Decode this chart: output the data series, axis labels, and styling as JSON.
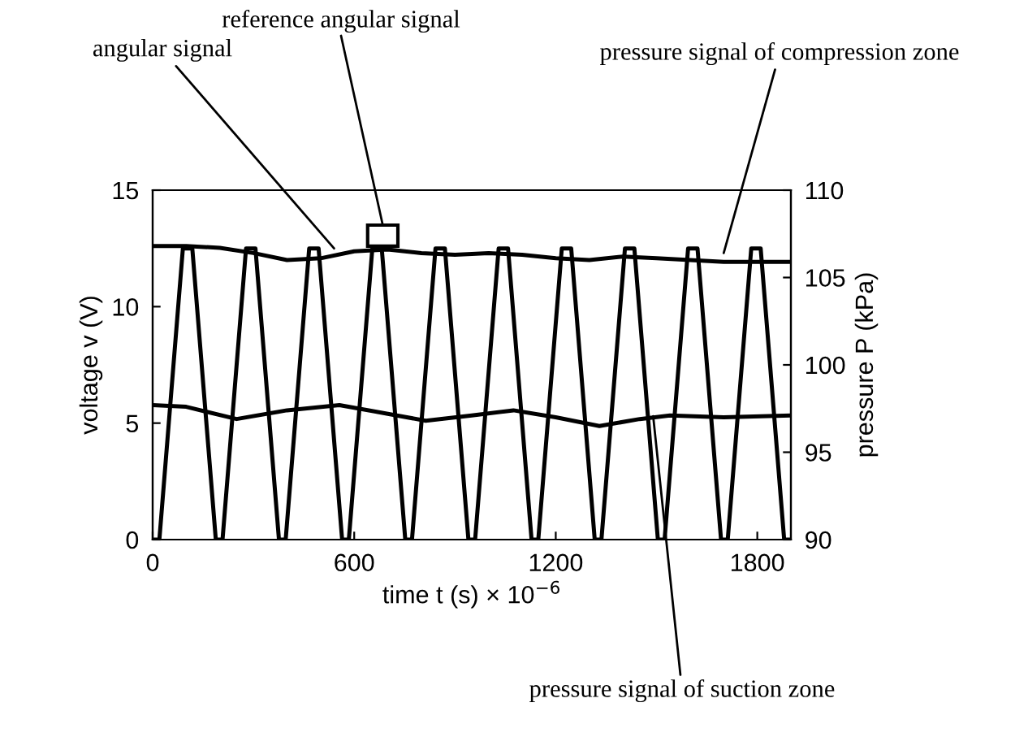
{
  "chart_data": {
    "type": "line",
    "xlabel": "time t (s) × 10$^{−6}$",
    "ylabel": "voltage v (V)",
    "y2label": "pressure P (kPa)",
    "xlim": [
      0,
      1900
    ],
    "xticks": [
      0,
      600,
      1200,
      1800
    ],
    "ylim": [
      0,
      15
    ],
    "yticks": [
      0,
      5,
      10,
      15
    ],
    "y2lim": [
      90,
      110
    ],
    "y2ticks": [
      90,
      95,
      100,
      105,
      110
    ],
    "grid": false,
    "legend": false,
    "marker": "none",
    "line_style": "solid",
    "series": [
      {
        "color": "#000000",
        "x": [
          0,
          20,
          90,
          118,
          188,
          208,
          278,
          306,
          376,
          396,
          466,
          494,
          564,
          584,
          654,
          682,
          752,
          772,
          842,
          870,
          940,
          960,
          1030,
          1058,
          1128,
          1148,
          1218,
          1246,
          1316,
          1336,
          1406,
          1434,
          1504,
          1524,
          1594,
          1622,
          1692,
          1712,
          1782,
          1810,
          1880,
          1900
        ],
        "values": [
          0,
          0,
          12.5,
          12.5,
          0,
          0,
          12.5,
          12.5,
          0,
          0,
          12.5,
          12.5,
          0,
          0,
          12.5,
          12.5,
          0,
          0,
          12.5,
          12.5,
          0,
          0,
          12.5,
          12.5,
          0,
          0,
          12.5,
          12.5,
          0,
          0,
          12.5,
          12.5,
          0,
          0,
          12.5,
          12.5,
          0,
          0,
          12.5,
          12.5,
          0,
          0
        ]
      },
      {
        "color": "#000000",
        "axis": "y2",
        "x": [
          0,
          100,
          200,
          300,
          400,
          500,
          600,
          700,
          800,
          900,
          1000,
          1100,
          1200,
          1300,
          1400,
          1500,
          1600,
          1700,
          1800,
          1900
        ],
        "values": [
          106.8,
          106.8,
          106.7,
          106.4,
          106.0,
          106.1,
          106.5,
          106.6,
          106.4,
          106.3,
          106.4,
          106.3,
          106.1,
          106.0,
          106.2,
          106.1,
          106.0,
          105.9,
          105.9,
          105.9
        ]
      },
      {
        "color": "#000000",
        "axis": "y2",
        "x": [
          0,
          100,
          250,
          400,
          556,
          700,
          813,
          950,
          1074,
          1200,
          1330,
          1450,
          1540,
          1700,
          1900
        ],
        "values": [
          97.7,
          97.6,
          96.9,
          97.4,
          97.7,
          97.2,
          96.8,
          97.1,
          97.4,
          97.0,
          96.5,
          96.9,
          97.1,
          97.0,
          97.1
        ]
      }
    ],
    "annotations": [
      {
        "text": "angular signal",
        "x": 540,
        "y": 12.5
      },
      "reference angular signal",
      {
        "text": "pressure signal of compression zone",
        "x": 1700,
        "y": 12.3
      },
      {
        "text": "pressure signal of suction zone",
        "x": 1490,
        "y": 5.3
      }
    ]
  }
}
